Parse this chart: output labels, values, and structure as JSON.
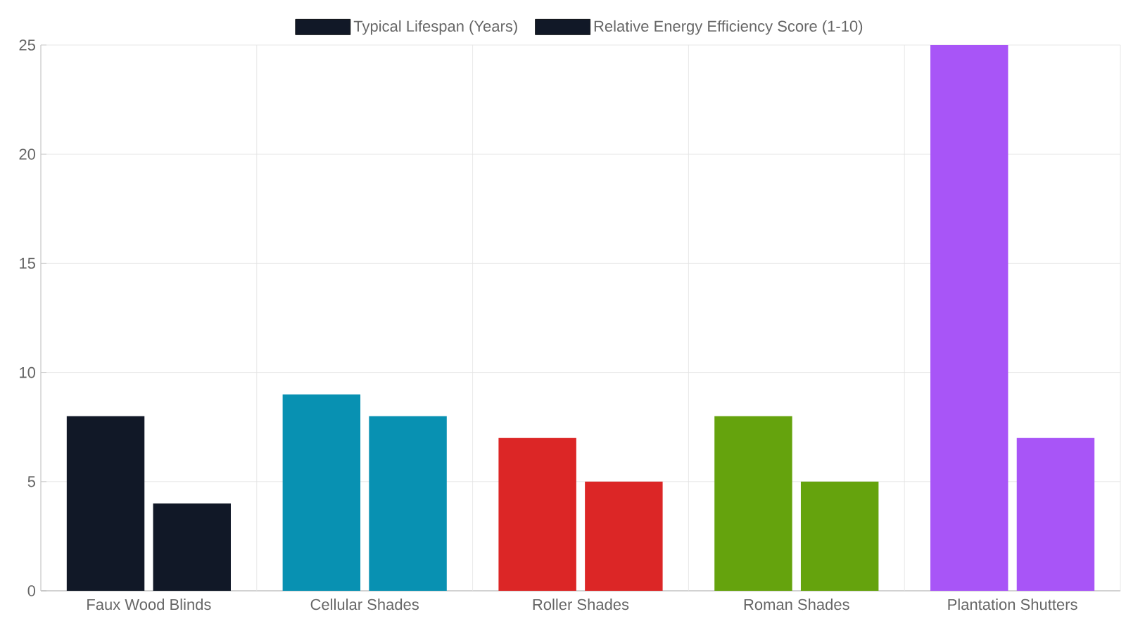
{
  "chart_data": {
    "type": "bar",
    "categories": [
      "Faux Wood Blinds",
      "Cellular Shades",
      "Roller Shades",
      "Roman Shades",
      "Plantation Shutters"
    ],
    "series": [
      {
        "name": "Typical Lifespan (Years)",
        "color": "#111827",
        "colors": [
          "#111827",
          "#0891b2",
          "#dc2626",
          "#65a30d",
          "#a855f7"
        ],
        "values": [
          8,
          9,
          7,
          8,
          25
        ]
      },
      {
        "name": "Relative Energy Efficiency Score (1-10)",
        "color": "#111827",
        "colors": [
          "#111827",
          "#0891b2",
          "#dc2626",
          "#65a30d",
          "#a855f7"
        ],
        "values": [
          4,
          8,
          5,
          5,
          7
        ]
      }
    ],
    "ylim": [
      0,
      25
    ],
    "yticks": [
      0,
      5,
      10,
      15,
      20,
      25
    ],
    "grid": true,
    "legend": "top"
  }
}
